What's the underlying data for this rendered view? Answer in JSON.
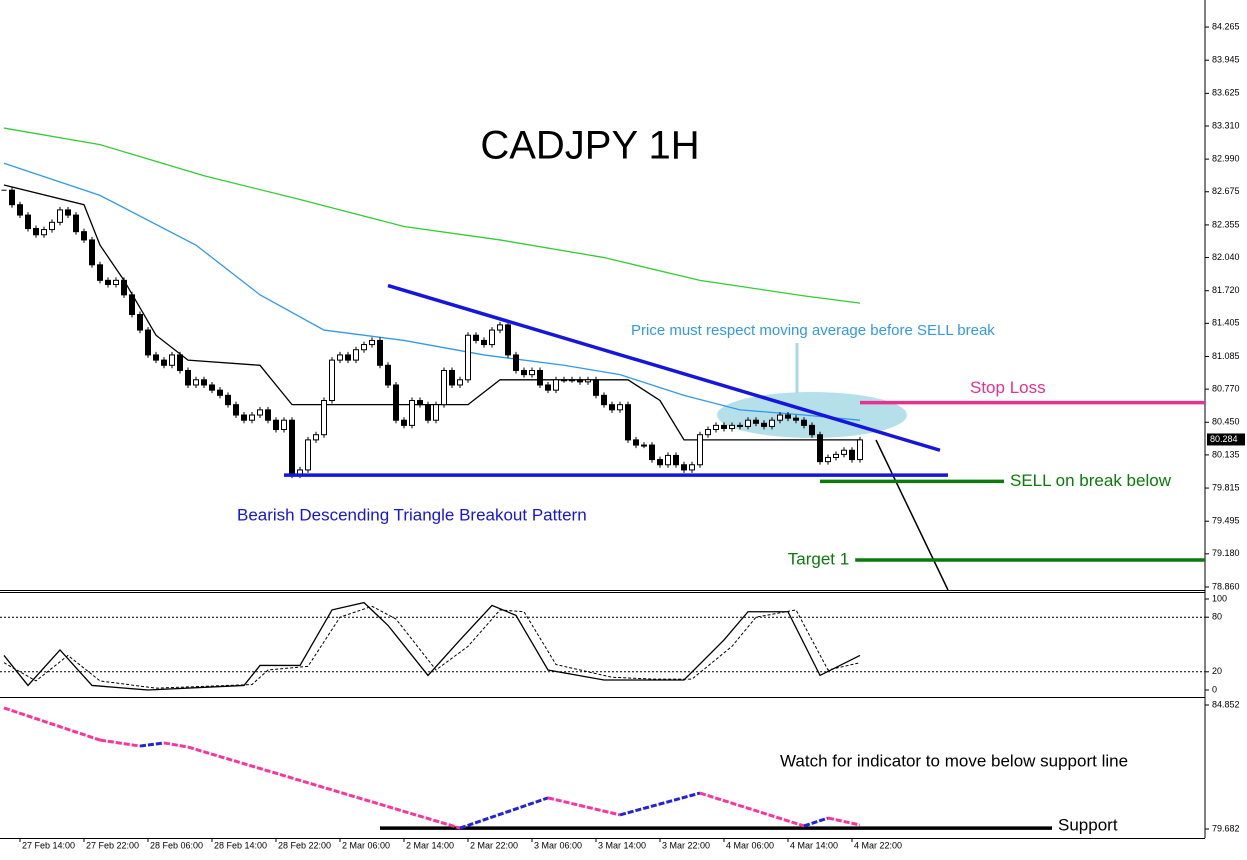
{
  "chart_data": [
    {
      "type": "candlestick",
      "title": "CADJPY 1H",
      "xlim": [
        -0.5,
        150.125
      ],
      "ylim": [
        78.831,
        84.526
      ],
      "yticks": [
        84.265,
        83.945,
        83.625,
        {
          "value": 83.31,
          "label": "83.310"
        },
        {
          "value": 82.99,
          "label": "82.990"
        },
        82.675,
        82.355,
        {
          "value": 82.04,
          "label": "82.040"
        },
        {
          "value": 81.72,
          "label": "81.720"
        },
        81.405,
        81.085,
        {
          "value": 80.77,
          "label": "80.770"
        },
        {
          "value": 80.45,
          "label": "80.450"
        },
        80.135,
        79.815,
        79.495,
        {
          "value": 79.18,
          "label": "79.180"
        },
        {
          "value": 78.86,
          "label": "78.860"
        }
      ],
      "close": [
        82.69,
        82.55,
        82.45,
        82.32,
        82.26,
        82.31,
        82.38,
        82.5,
        82.45,
        82.29,
        82.21,
        81.97,
        81.82,
        81.78,
        81.82,
        81.68,
        81.49,
        81.34,
        81.1,
        81.05,
        81.0,
        81.1,
        80.95,
        80.81,
        80.86,
        80.81,
        80.76,
        80.71,
        80.62,
        80.52,
        80.47,
        80.52,
        80.57,
        80.47,
        80.38,
        80.47,
        79.94,
        79.99,
        80.28,
        80.33,
        80.66,
        81.05,
        81.1,
        81.05,
        81.15,
        81.2,
        81.24,
        81.0,
        80.81,
        80.47,
        80.42,
        80.66,
        80.62,
        80.47,
        80.62,
        80.95,
        80.81,
        80.86,
        81.29,
        81.24,
        81.2,
        81.34,
        81.39,
        81.1,
        80.95,
        80.91,
        80.95,
        80.81,
        80.76,
        80.86,
        80.86,
        80.86,
        80.84,
        80.86,
        80.71,
        80.62,
        80.57,
        80.62,
        80.28,
        80.23,
        80.23,
        80.09,
        80.04,
        80.13,
        80.04,
        79.99,
        80.04,
        80.33,
        80.38,
        80.42,
        80.39,
        80.42,
        80.41,
        80.47,
        80.44,
        80.41,
        80.47,
        80.52,
        80.49,
        80.47,
        80.42,
        80.33,
        80.07,
        80.11,
        80.14,
        80.18,
        80.09,
        80.28
      ],
      "series": [
        {
          "color": "#33cc33",
          "x": [
            0,
            12,
            25,
            37,
            50,
            62,
            75,
            87,
            100,
            107
          ],
          "values": [
            83.29,
            83.13,
            82.83,
            82.6,
            82.34,
            82.21,
            82.04,
            81.82,
            81.67,
            81.6
          ]
        },
        {
          "color": "#3399e6",
          "x": [
            0,
            12,
            24,
            32,
            40,
            50,
            60,
            70,
            77,
            85,
            92,
            100,
            107
          ],
          "values": [
            82.95,
            82.64,
            82.16,
            81.68,
            81.34,
            81.24,
            81.1,
            81.0,
            80.91,
            80.71,
            80.57,
            80.52,
            80.47
          ]
        },
        {
          "color": "#000000",
          "x": [
            0,
            10,
            12,
            15,
            19,
            23,
            32,
            36,
            47,
            58,
            62,
            78,
            82,
            85,
            100,
            107
          ],
          "values": [
            82.74,
            82.55,
            82.16,
            81.82,
            81.29,
            81.05,
            81.0,
            80.62,
            80.62,
            80.62,
            80.86,
            80.86,
            80.66,
            80.28,
            80.28,
            80.28
          ]
        }
      ],
      "trendlines": [
        {
          "color": "#1515dd",
          "x": [
            48,
            117
          ],
          "values": [
            81.77,
            80.18
          ]
        },
        {
          "color": "#1515dd",
          "x": [
            35,
            118
          ],
          "values": [
            79.94,
            79.94
          ]
        }
      ],
      "levels": [
        {
          "label": "Stop Loss",
          "value": 80.64,
          "x": [
            107,
            150.125
          ],
          "color": "#e8308f"
        },
        {
          "label": "SELL on break below",
          "value": 79.88,
          "x": [
            102,
            125
          ],
          "color": "#0a7a0a"
        },
        {
          "label": "Target 1",
          "value": 79.12,
          "x": [
            106.4,
            150.125
          ],
          "color": "#0a7a0a"
        }
      ],
      "price_label": 80.284,
      "annotations": [
        "Price must respect moving average before SELL break",
        "Bearish Descending Triangle Breakout Pattern"
      ]
    },
    {
      "type": "line",
      "xlim": [
        -0.5,
        150.125
      ],
      "ylim": [
        -7.7,
        107.7
      ],
      "yticks": [
        100,
        80,
        20,
        0
      ],
      "levels": [
        80,
        20
      ],
      "series": [
        {
          "color": "#000000",
          "x": [
            0,
            3,
            7,
            11,
            18,
            30,
            32,
            37,
            41,
            45,
            48,
            53,
            57,
            61,
            64,
            68,
            75,
            80,
            85,
            90,
            93,
            98,
            102,
            107
          ],
          "values": [
            38,
            5,
            44,
            5,
            0,
            5,
            27,
            27,
            88,
            96,
            71,
            16,
            55,
            93,
            82,
            22,
            11,
            11,
            11,
            55,
            86,
            86,
            16,
            38
          ]
        },
        {
          "color": "#000000",
          "dashed": true,
          "x": [
            0,
            4,
            8,
            12,
            19,
            31,
            33,
            38,
            42,
            46,
            49,
            54,
            58,
            62,
            65,
            69,
            76,
            81,
            86,
            91,
            94,
            99,
            103,
            107
          ],
          "values": [
            30,
            10,
            38,
            10,
            2,
            6,
            22,
            26,
            80,
            92,
            78,
            22,
            48,
            88,
            86,
            28,
            14,
            12,
            12,
            48,
            80,
            88,
            22,
            30
          ]
        }
      ]
    },
    {
      "type": "segments",
      "xlim": [
        -0.5,
        150.125
      ],
      "ylim": [
        79.307,
        85.144
      ],
      "yticks": [
        84.852,
        79.682
      ],
      "colors": {
        "down": "#ff3399",
        "up": "#2222dd"
      },
      "x": [
        0,
        12,
        17,
        20,
        23,
        57,
        68,
        77,
        87,
        100,
        103,
        107
      ],
      "values": [
        84.73,
        83.39,
        83.14,
        83.27,
        83.1,
        79.72,
        80.98,
        80.27,
        81.18,
        79.81,
        80.14,
        79.85
      ],
      "support": {
        "label": "Support",
        "value": 79.72,
        "x": [
          47,
          131
        ]
      },
      "annotation": "Watch for indicator to move below support line",
      "xticks": [
        {
          "value": 2,
          "label": "27 Feb 14:00"
        },
        {
          "value": 10,
          "label": "27 Feb 22:00"
        },
        {
          "value": 18,
          "label": "28 Feb 06:00"
        },
        {
          "value": 26,
          "label": "28 Feb 14:00"
        },
        {
          "value": 34,
          "label": "28 Feb 22:00"
        },
        {
          "value": 42,
          "label": "2 Mar 06:00"
        },
        {
          "value": 50,
          "label": "2 Mar 14:00"
        },
        {
          "value": 58,
          "label": "2 Mar 22:00"
        },
        {
          "value": 66,
          "label": "3 Mar 06:00"
        },
        {
          "value": 74,
          "label": "3 Mar 14:00"
        },
        {
          "value": 82,
          "label": "3 Mar 22:00"
        },
        {
          "value": 90,
          "label": "4 Mar 06:00"
        },
        {
          "value": 98,
          "label": "4 Mar 14:00"
        },
        {
          "value": 106,
          "label": "4 Mar 22:00"
        }
      ]
    }
  ]
}
